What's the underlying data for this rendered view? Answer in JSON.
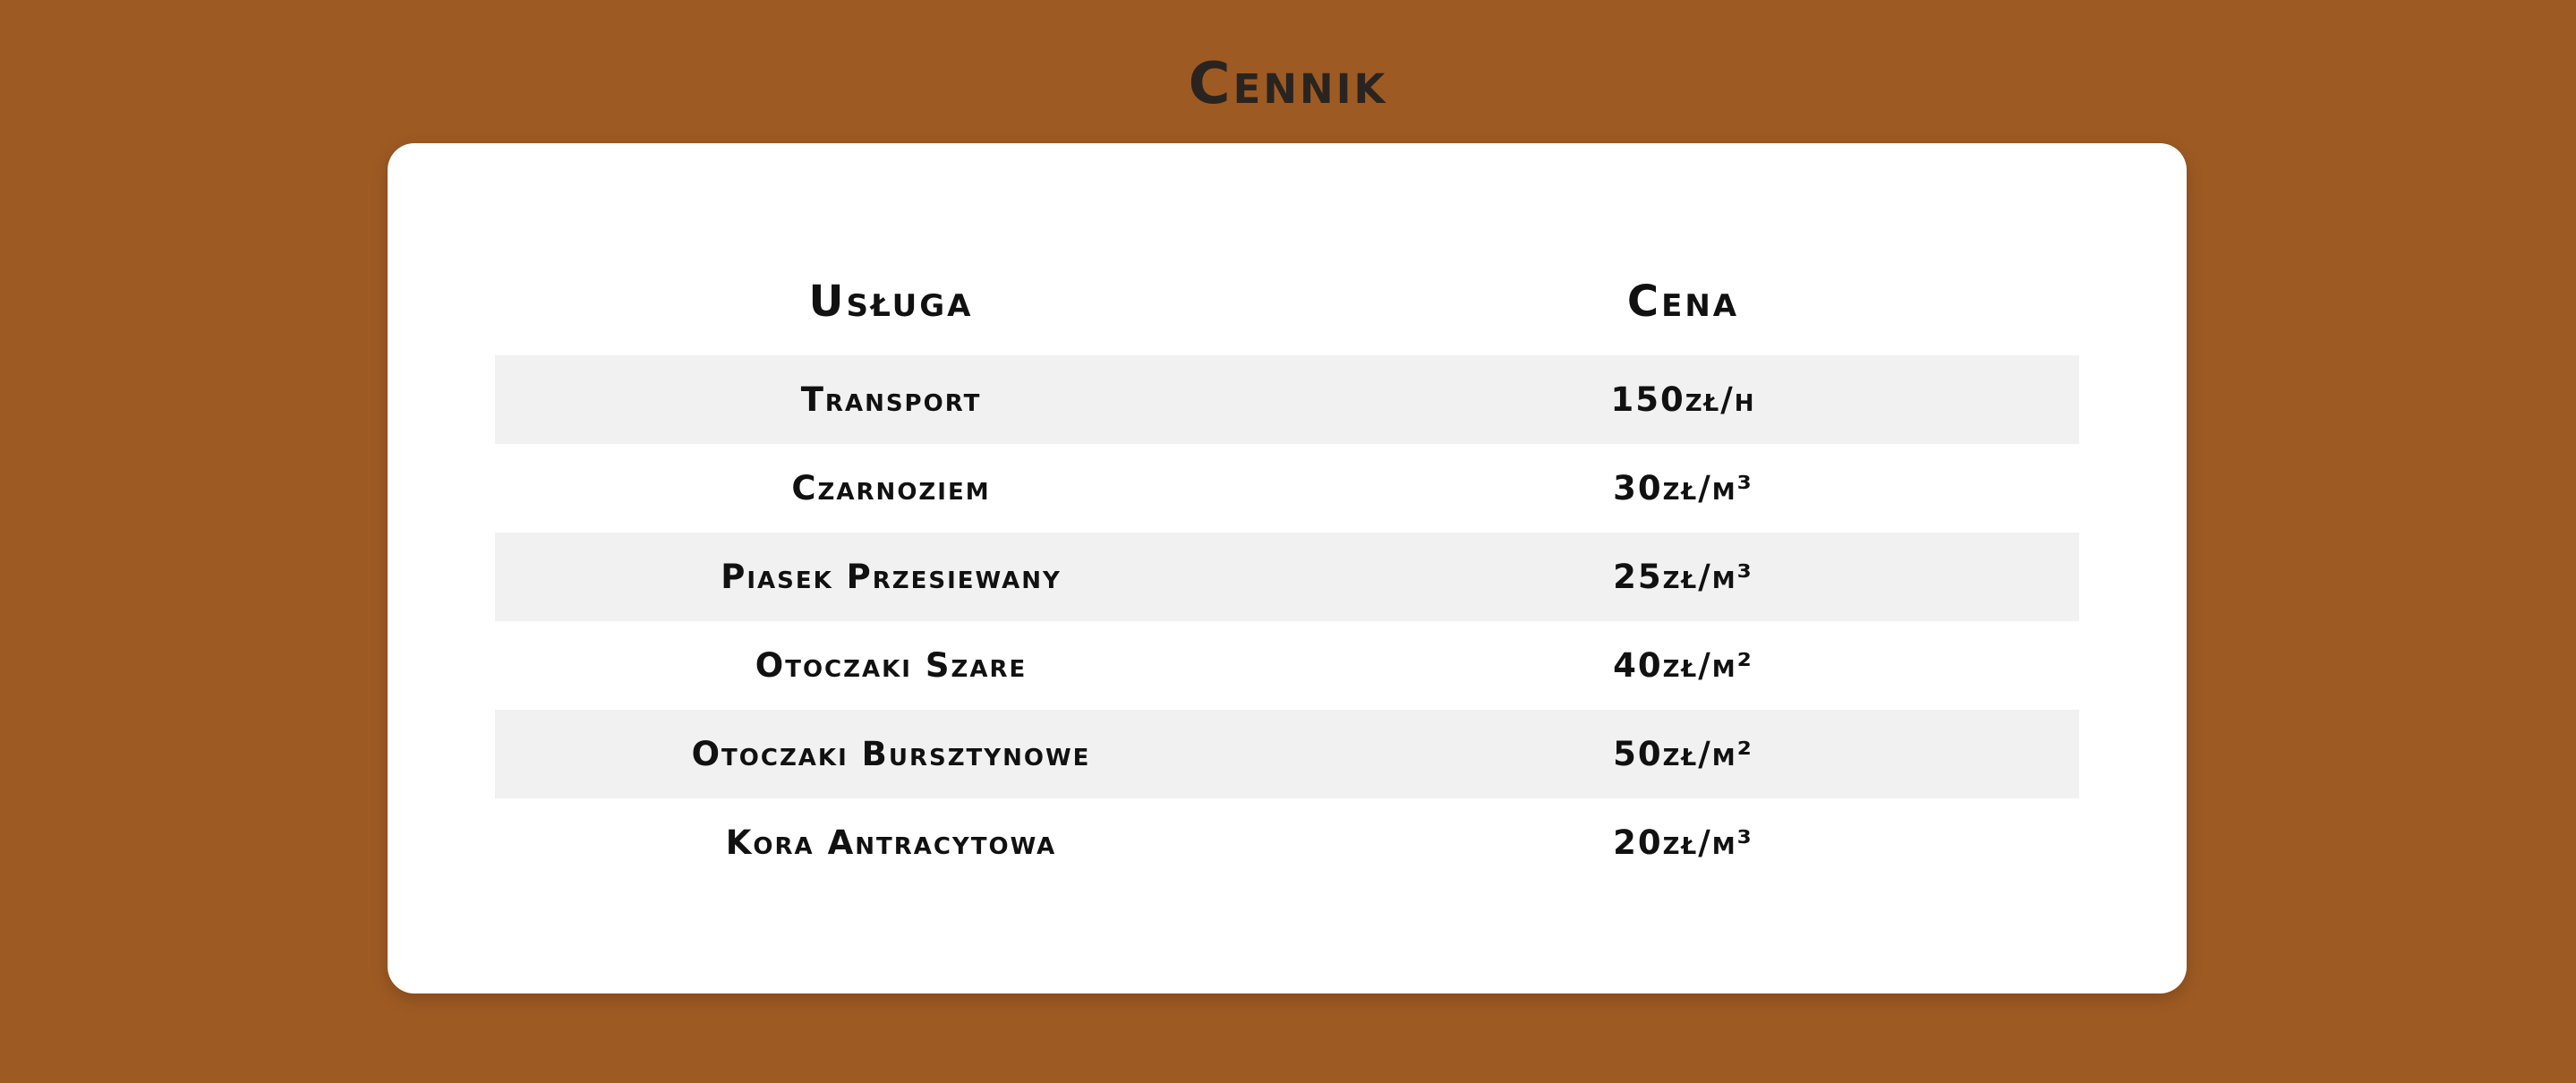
{
  "page": {
    "title": "Cennik",
    "background_color": "#9e5a23",
    "card_color": "#ffffff",
    "stripe_color": "#f1f1f1"
  },
  "table": {
    "headers": {
      "service": "Usługa",
      "price": "Cena"
    },
    "rows": [
      {
        "service": "Transport",
        "price": "150zł/h"
      },
      {
        "service": "Czarnoziem",
        "price": "30zł/m³"
      },
      {
        "service": "Piasek Przesiewany",
        "price": "25zł/m³"
      },
      {
        "service": "Otoczaki Szare",
        "price": "40zł/m²"
      },
      {
        "service": "Otoczaki Bursztynowe",
        "price": "50zł/m²"
      },
      {
        "service": "Kora Antracytowa",
        "price": "20zł/m³"
      }
    ]
  }
}
